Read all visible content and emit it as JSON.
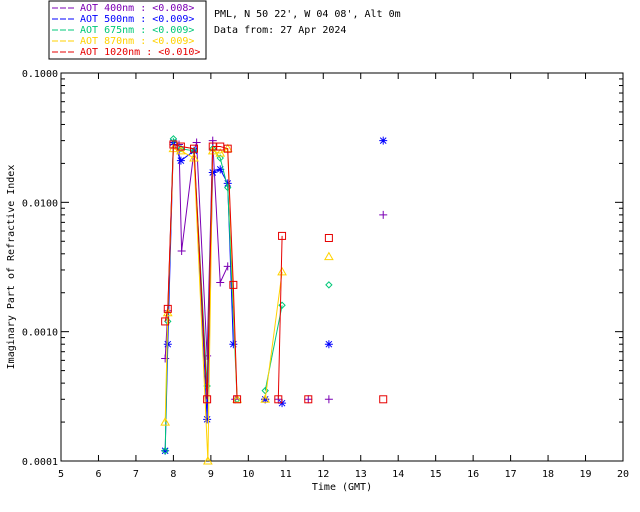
{
  "header": {
    "site": "PML, N 50 22', W 04 08', Alt 0m",
    "date": "Data from: 27 Apr 2024"
  },
  "chart_data": {
    "type": "scatter",
    "title": "",
    "xlabel": "Time (GMT)",
    "ylabel": "Imaginary Part of Refractive Index",
    "xlim": [
      5,
      20
    ],
    "ylim": [
      0.0001,
      0.1
    ],
    "yscale": "log",
    "grid": false,
    "legend_position": "top-left",
    "x_ticks": [
      "5",
      "6",
      "7",
      "8",
      "9",
      "10",
      "11",
      "12",
      "13",
      "14",
      "15",
      "16",
      "17",
      "18",
      "19",
      "20"
    ],
    "y_ticks": [
      "0.0001",
      "0.0010",
      "0.0100",
      "0.1000"
    ],
    "series": [
      {
        "name": "AOT  400nm : <0.008>",
        "color": "#7b00b4",
        "marker": "plus",
        "points": [
          [
            7.78,
            0.00062
          ],
          [
            7.85,
            0.00145
          ],
          [
            8.0,
            0.028
          ],
          [
            8.15,
            0.028
          ],
          [
            8.22,
            0.0042
          ],
          [
            8.55,
            0.025
          ],
          [
            8.62,
            0.029
          ],
          [
            8.9,
            0.00065
          ],
          [
            9.05,
            0.03
          ],
          [
            9.25,
            0.0024
          ],
          [
            9.45,
            0.0032
          ],
          [
            9.65,
            0.0003
          ],
          [
            10.45,
            0.0003
          ],
          [
            10.8,
            0.0003
          ],
          [
            11.6,
            0.0003
          ],
          [
            12.15,
            0.0003
          ],
          [
            13.6,
            0.008
          ]
        ],
        "segments": [
          [
            0,
            10
          ]
        ]
      },
      {
        "name": "AOT  500nm : <0.009>",
        "color": "#0000ff",
        "marker": "asterisk",
        "points": [
          [
            7.78,
            0.00012
          ],
          [
            7.85,
            0.0008
          ],
          [
            8.0,
            0.029
          ],
          [
            8.2,
            0.021
          ],
          [
            8.55,
            0.025
          ],
          [
            8.9,
            0.00021
          ],
          [
            9.05,
            0.017
          ],
          [
            9.25,
            0.018
          ],
          [
            9.45,
            0.014
          ],
          [
            9.6,
            0.0008
          ],
          [
            10.45,
            0.0003
          ],
          [
            10.9,
            0.00028
          ],
          [
            12.15,
            0.0008
          ],
          [
            13.6,
            0.03
          ]
        ],
        "segments": [
          [
            0,
            9
          ]
        ]
      },
      {
        "name": "AOT  675nm : <0.009>",
        "color": "#00c878",
        "marker": "diamond",
        "points": [
          [
            7.78,
            0.00012
          ],
          [
            7.85,
            0.0012
          ],
          [
            8.0,
            0.031
          ],
          [
            8.2,
            0.026
          ],
          [
            8.55,
            0.025
          ],
          [
            8.9,
            0.00038
          ],
          [
            9.05,
            0.026
          ],
          [
            9.25,
            0.022
          ],
          [
            9.45,
            0.013
          ],
          [
            9.7,
            0.0003
          ],
          [
            10.45,
            0.00035
          ],
          [
            10.9,
            0.0016
          ],
          [
            12.15,
            0.0023
          ]
        ],
        "segments": [
          [
            0,
            9
          ],
          [
            10,
            11
          ]
        ]
      },
      {
        "name": "AOT  870nm : <0.009>",
        "color": "#ffd200",
        "marker": "triangle",
        "points": [
          [
            7.78,
            0.0002
          ],
          [
            7.85,
            0.0014
          ],
          [
            8.0,
            0.026
          ],
          [
            8.2,
            0.025
          ],
          [
            8.55,
            0.022
          ],
          [
            8.92,
            0.0001
          ],
          [
            9.05,
            0.025
          ],
          [
            9.25,
            0.024
          ],
          [
            9.45,
            0.026
          ],
          [
            9.7,
            0.0003
          ],
          [
            10.45,
            0.0003
          ],
          [
            10.9,
            0.0029
          ],
          [
            12.15,
            0.0038
          ]
        ],
        "segments": [
          [
            0,
            9
          ],
          [
            10,
            11
          ]
        ]
      },
      {
        "name": "AOT 1020nm : <0.010>",
        "color": "#e60000",
        "marker": "square",
        "points": [
          [
            7.78,
            0.0012
          ],
          [
            7.85,
            0.0015
          ],
          [
            8.0,
            0.028
          ],
          [
            8.2,
            0.027
          ],
          [
            8.55,
            0.026
          ],
          [
            8.9,
            0.0003
          ],
          [
            9.05,
            0.027
          ],
          [
            9.25,
            0.027
          ],
          [
            9.45,
            0.026
          ],
          [
            9.6,
            0.0023
          ],
          [
            9.7,
            0.0003
          ],
          [
            10.8,
            0.0003
          ],
          [
            10.9,
            0.0055
          ],
          [
            11.6,
            0.0003
          ],
          [
            12.15,
            0.0053
          ],
          [
            13.6,
            0.0003
          ]
        ],
        "segments": [
          [
            0,
            10
          ],
          [
            11,
            12
          ]
        ]
      }
    ]
  }
}
